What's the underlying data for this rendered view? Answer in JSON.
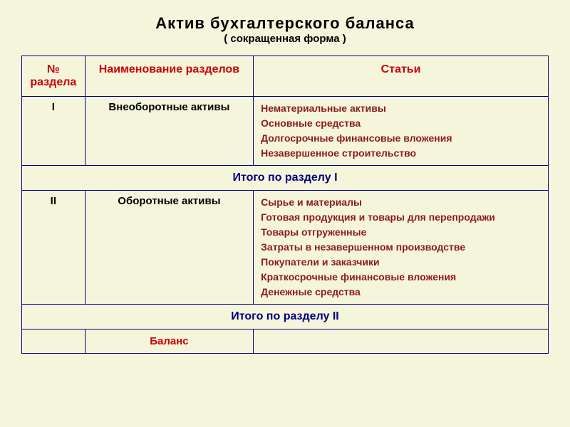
{
  "title": {
    "main": "Актив  бухгалтерского  баланса",
    "sub": "( сокращенная форма )",
    "main_fontsize": 22,
    "sub_fontsize": 15,
    "color": "#000000"
  },
  "table": {
    "border_color": "#000080",
    "background_color": "#f5f5dc",
    "header": {
      "color": "#cc0000",
      "fontsize": 16,
      "columns": [
        "№ раздела",
        "Наименование разделов",
        "Статьи"
      ]
    },
    "sections": [
      {
        "num": "I",
        "name": "Внеоборотные активы",
        "items": [
          "Нематериальные активы",
          "Основные средства",
          "Долгосрочные финансовые вложения",
          "Незавершенное строительство"
        ],
        "total_label": "Итого по разделу I"
      },
      {
        "num": "II",
        "name": "Оборотные активы",
        "items": [
          "Сырье и материалы",
          "Готовая продукция и товары для перепродажи",
          "Товары отгруженные",
          "Затраты в незавершенном производстве",
          "Покупатели и заказчики",
          "Краткосрочные финансовые вложения",
          "Денежные средства"
        ],
        "total_label": "Итого по разделу II"
      }
    ],
    "balance_label": "Баланс",
    "section_text_color": "#000000",
    "items_text_color": "#8b1a1a",
    "total_text_color": "#000080",
    "balance_label_color": "#cc0000"
  },
  "column_widths": [
    "12%",
    "32%",
    "56%"
  ]
}
